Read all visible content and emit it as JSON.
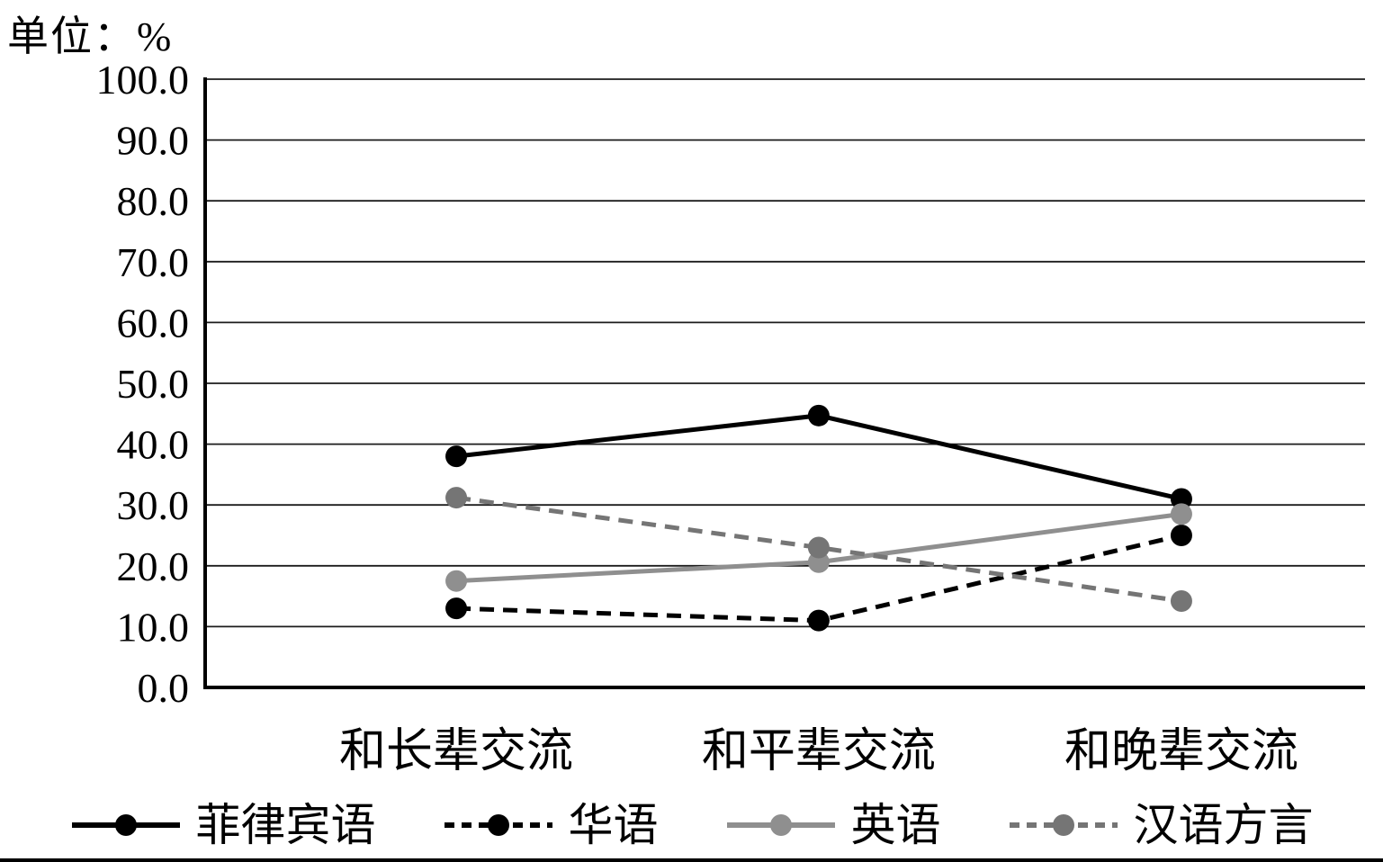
{
  "chart_data": {
    "type": "line",
    "unit_label": "单位：%",
    "categories": [
      "和长辈交流",
      "和平辈交流",
      "和晚辈交流"
    ],
    "series": [
      {
        "name": "菲律宾语",
        "style": "solid",
        "color": "#000000",
        "values": [
          38.0,
          44.7,
          31.0
        ]
      },
      {
        "name": "华语",
        "style": "dashed",
        "color": "#000000",
        "values": [
          13.0,
          11.0,
          25.0
        ]
      },
      {
        "name": "英语",
        "style": "solid",
        "color": "#8f8f8f",
        "values": [
          17.5,
          20.6,
          28.5
        ]
      },
      {
        "name": "汉语方言",
        "style": "dashed",
        "color": "#757575",
        "values": [
          31.2,
          23.0,
          14.2
        ]
      }
    ],
    "ylim": [
      0,
      100
    ],
    "y_tick_step": 10,
    "y_tick_labels": [
      "0.0",
      "10.0",
      "20.0",
      "30.0",
      "40.0",
      "50.0",
      "60.0",
      "70.0",
      "80.0",
      "90.0",
      "100.0"
    ],
    "grid": true,
    "legend_position": "bottom",
    "colors": {
      "axis": "#000000",
      "gridline": "#1c1c1c",
      "text": "#000000"
    }
  }
}
